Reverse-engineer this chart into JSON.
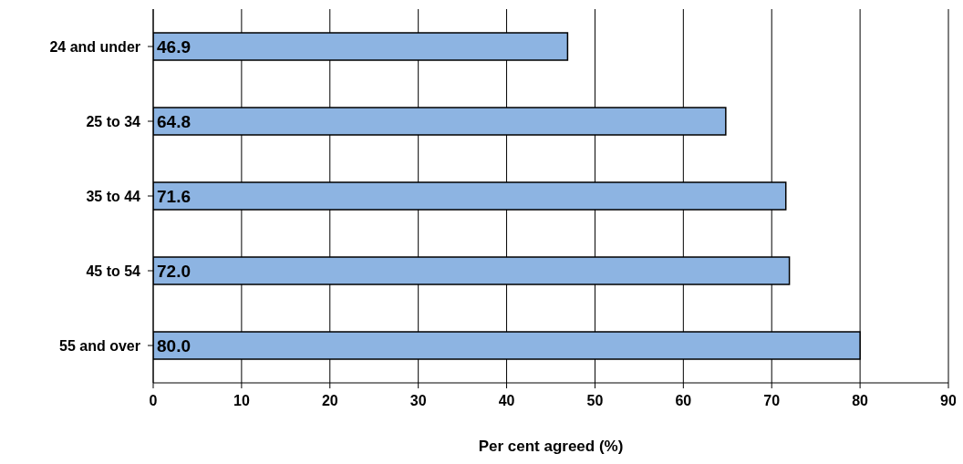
{
  "chart_data": {
    "type": "bar",
    "orientation": "horizontal",
    "xlabel": "Per cent agreed (%)",
    "categories": [
      "24 and under",
      "25 to 34",
      "35 to 44",
      "45 to 54",
      "55 and over"
    ],
    "values": [
      46.9,
      64.8,
      71.6,
      72.0,
      80.0
    ],
    "value_labels": [
      "46.9",
      "64.8",
      "71.6",
      "72.0",
      "80.0"
    ],
    "color": "#8db4e2",
    "xlim": [
      0,
      90
    ],
    "xticks": [
      0,
      10,
      20,
      30,
      40,
      50,
      60,
      70,
      80,
      90
    ],
    "grid": "x"
  }
}
